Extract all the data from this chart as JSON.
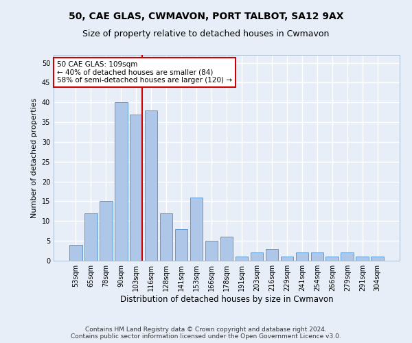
{
  "title1": "50, CAE GLAS, CWMAVON, PORT TALBOT, SA12 9AX",
  "title2": "Size of property relative to detached houses in Cwmavon",
  "xlabel": "Distribution of detached houses by size in Cwmavon",
  "ylabel": "Number of detached properties",
  "categories": [
    "53sqm",
    "65sqm",
    "78sqm",
    "90sqm",
    "103sqm",
    "116sqm",
    "128sqm",
    "141sqm",
    "153sqm",
    "166sqm",
    "178sqm",
    "191sqm",
    "203sqm",
    "216sqm",
    "229sqm",
    "241sqm",
    "254sqm",
    "266sqm",
    "279sqm",
    "291sqm",
    "304sqm"
  ],
  "values": [
    4,
    12,
    15,
    40,
    37,
    38,
    12,
    8,
    16,
    5,
    6,
    1,
    2,
    3,
    1,
    2,
    2,
    1,
    2,
    1,
    1
  ],
  "bar_color": "#aec6e8",
  "bar_edge_color": "#5b9bd5",
  "ref_line_color": "#cc0000",
  "annotation_text": "50 CAE GLAS: 109sqm\n← 40% of detached houses are smaller (84)\n58% of semi-detached houses are larger (120) →",
  "annotation_box_color": "#ffffff",
  "annotation_box_edge": "#cc0000",
  "footer1": "Contains HM Land Registry data © Crown copyright and database right 2024.",
  "footer2": "Contains public sector information licensed under the Open Government Licence v3.0.",
  "ylim": [
    0,
    52
  ],
  "yticks": [
    0,
    5,
    10,
    15,
    20,
    25,
    30,
    35,
    40,
    45,
    50
  ],
  "background_color": "#e8eef8",
  "grid_color": "#ffffff",
  "title1_fontsize": 10,
  "title2_fontsize": 9,
  "ylabel_fontsize": 8,
  "xlabel_fontsize": 8.5,
  "tick_fontsize": 7,
  "footer_fontsize": 6.5,
  "annotation_fontsize": 7.5
}
